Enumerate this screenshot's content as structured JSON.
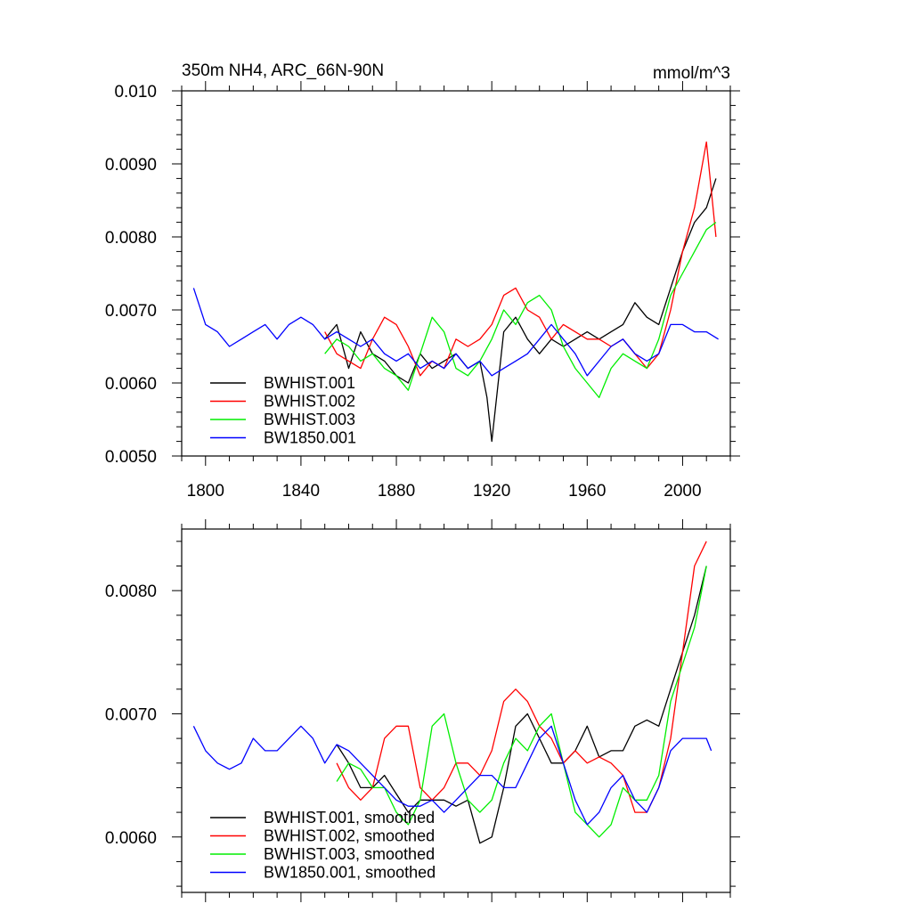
{
  "chart_data": [
    {
      "type": "line",
      "title": "350m NH4, ARC_66N-90N",
      "units": "mmol/m^3",
      "xlim": [
        1790,
        2020
      ],
      "ylim": [
        0.005,
        0.01
      ],
      "xticks": [
        1800,
        1840,
        1880,
        1920,
        1960,
        2000
      ],
      "xtick_labels": [
        "1800",
        "1840",
        "1880",
        "1920",
        "1960",
        "2000"
      ],
      "yticks": [
        0.005,
        0.006,
        0.007,
        0.008,
        0.009,
        0.01
      ],
      "ytick_labels": [
        "0.0050",
        "0.0060",
        "0.0070",
        "0.0080",
        "0.0090",
        "0.010"
      ],
      "legend_position": "bottom-left",
      "series": [
        {
          "name": "BWHIST.001",
          "color": "#000000",
          "x": [
            1850,
            1855,
            1860,
            1865,
            1870,
            1875,
            1880,
            1885,
            1890,
            1895,
            1900,
            1905,
            1910,
            1915,
            1918,
            1920,
            1925,
            1930,
            1935,
            1940,
            1945,
            1950,
            1955,
            1960,
            1965,
            1970,
            1975,
            1980,
            1985,
            1990,
            1995,
            2000,
            2005,
            2010,
            2014
          ],
          "y": [
            0.0066,
            0.0068,
            0.0062,
            0.0067,
            0.0064,
            0.0063,
            0.0061,
            0.006,
            0.0064,
            0.0062,
            0.0063,
            0.0064,
            0.0062,
            0.0063,
            0.0058,
            0.0052,
            0.0067,
            0.0069,
            0.0066,
            0.0064,
            0.0066,
            0.0065,
            0.0066,
            0.0067,
            0.0066,
            0.0067,
            0.0068,
            0.0071,
            0.0069,
            0.0068,
            0.0073,
            0.0078,
            0.0082,
            0.0084,
            0.0088
          ]
        },
        {
          "name": "BWHIST.002",
          "color": "#ff0000",
          "x": [
            1850,
            1855,
            1860,
            1865,
            1870,
            1875,
            1880,
            1885,
            1890,
            1895,
            1900,
            1905,
            1910,
            1915,
            1920,
            1925,
            1930,
            1935,
            1940,
            1945,
            1950,
            1955,
            1960,
            1965,
            1970,
            1975,
            1980,
            1985,
            1990,
            1995,
            2000,
            2005,
            2010,
            2014
          ],
          "y": [
            0.0067,
            0.0064,
            0.0063,
            0.0062,
            0.0066,
            0.0069,
            0.0068,
            0.0065,
            0.0061,
            0.0063,
            0.0062,
            0.0066,
            0.0065,
            0.0066,
            0.0068,
            0.0072,
            0.0073,
            0.007,
            0.0069,
            0.0066,
            0.0068,
            0.0067,
            0.0066,
            0.0066,
            0.0065,
            0.0066,
            0.0064,
            0.0062,
            0.0064,
            0.007,
            0.0078,
            0.0084,
            0.0093,
            0.008
          ]
        },
        {
          "name": "BWHIST.003",
          "color": "#00ee00",
          "x": [
            1850,
            1855,
            1860,
            1865,
            1870,
            1875,
            1880,
            1885,
            1890,
            1895,
            1900,
            1905,
            1910,
            1915,
            1920,
            1925,
            1930,
            1935,
            1940,
            1945,
            1950,
            1955,
            1960,
            1965,
            1970,
            1975,
            1980,
            1985,
            1990,
            1995,
            2000,
            2005,
            2010,
            2014
          ],
          "y": [
            0.0064,
            0.0066,
            0.0065,
            0.0063,
            0.0064,
            0.0062,
            0.0061,
            0.0059,
            0.0064,
            0.0069,
            0.0067,
            0.0062,
            0.0061,
            0.0063,
            0.0066,
            0.007,
            0.0068,
            0.0071,
            0.0072,
            0.007,
            0.0065,
            0.0062,
            0.006,
            0.0058,
            0.0062,
            0.0064,
            0.0063,
            0.0062,
            0.0066,
            0.0072,
            0.0075,
            0.0078,
            0.0081,
            0.0082
          ]
        },
        {
          "name": "BW1850.001",
          "color": "#0000ff",
          "x": [
            1795,
            1800,
            1805,
            1810,
            1815,
            1820,
            1825,
            1830,
            1835,
            1840,
            1845,
            1850,
            1855,
            1860,
            1865,
            1870,
            1875,
            1880,
            1885,
            1890,
            1895,
            1900,
            1905,
            1910,
            1915,
            1920,
            1925,
            1930,
            1935,
            1940,
            1945,
            1950,
            1955,
            1960,
            1965,
            1970,
            1975,
            1980,
            1985,
            1990,
            1995,
            2000,
            2005,
            2010,
            2015
          ],
          "y": [
            0.0073,
            0.0068,
            0.0067,
            0.0065,
            0.0066,
            0.0067,
            0.0068,
            0.0066,
            0.0068,
            0.0069,
            0.0068,
            0.0066,
            0.0067,
            0.0066,
            0.0065,
            0.0066,
            0.0064,
            0.0063,
            0.0064,
            0.0062,
            0.0063,
            0.0062,
            0.0064,
            0.0062,
            0.0063,
            0.0061,
            0.0062,
            0.0063,
            0.0064,
            0.0066,
            0.0068,
            0.0066,
            0.0064,
            0.0061,
            0.0063,
            0.0065,
            0.0066,
            0.0064,
            0.0063,
            0.0064,
            0.0068,
            0.0068,
            0.0067,
            0.0067,
            0.0066
          ]
        }
      ]
    },
    {
      "type": "line",
      "xlim": [
        1790,
        2020
      ],
      "ylim": [
        0.00555,
        0.0085
      ],
      "xticks": [
        1800,
        1840,
        1880,
        1920,
        1960,
        2000
      ],
      "yticks": [
        0.006,
        0.007,
        0.008
      ],
      "ytick_labels": [
        "0.0060",
        "0.0070",
        "0.0080"
      ],
      "legend_position": "bottom-left",
      "series": [
        {
          "name": "BWHIST.001, smoothed",
          "color": "#000000",
          "x": [
            1855,
            1860,
            1865,
            1870,
            1875,
            1880,
            1885,
            1890,
            1895,
            1900,
            1905,
            1910,
            1915,
            1920,
            1925,
            1930,
            1935,
            1940,
            1945,
            1950,
            1955,
            1960,
            1965,
            1970,
            1975,
            1980,
            1985,
            1990,
            1995,
            2000,
            2005,
            2010
          ],
          "y": [
            0.00675,
            0.0066,
            0.0064,
            0.0064,
            0.0065,
            0.00635,
            0.0062,
            0.0063,
            0.0063,
            0.0063,
            0.00625,
            0.0063,
            0.00595,
            0.006,
            0.0064,
            0.0069,
            0.007,
            0.0068,
            0.0066,
            0.0066,
            0.0067,
            0.0069,
            0.00665,
            0.0067,
            0.0067,
            0.0069,
            0.00695,
            0.0069,
            0.0072,
            0.0075,
            0.0078,
            0.0082
          ]
        },
        {
          "name": "BWHIST.002, smoothed",
          "color": "#ff0000",
          "x": [
            1855,
            1860,
            1865,
            1870,
            1875,
            1880,
            1885,
            1890,
            1895,
            1900,
            1905,
            1910,
            1915,
            1920,
            1925,
            1930,
            1935,
            1940,
            1945,
            1950,
            1955,
            1960,
            1965,
            1970,
            1975,
            1980,
            1985,
            1990,
            1995,
            2000,
            2005,
            2010
          ],
          "y": [
            0.0066,
            0.0064,
            0.0063,
            0.0064,
            0.0068,
            0.0069,
            0.0069,
            0.0064,
            0.0063,
            0.0064,
            0.0066,
            0.0066,
            0.0065,
            0.0067,
            0.0071,
            0.0072,
            0.0071,
            0.0069,
            0.0068,
            0.0066,
            0.0067,
            0.0066,
            0.00665,
            0.0066,
            0.0065,
            0.0062,
            0.0062,
            0.0064,
            0.0068,
            0.0075,
            0.0082,
            0.0084
          ]
        },
        {
          "name": "BWHIST.003, smoothed",
          "color": "#00ee00",
          "x": [
            1855,
            1860,
            1865,
            1870,
            1875,
            1880,
            1885,
            1890,
            1895,
            1900,
            1905,
            1910,
            1915,
            1920,
            1925,
            1930,
            1935,
            1940,
            1945,
            1950,
            1955,
            1960,
            1965,
            1970,
            1975,
            1980,
            1985,
            1990,
            1995,
            2000,
            2005,
            2010
          ],
          "y": [
            0.00645,
            0.0066,
            0.00655,
            0.0064,
            0.0064,
            0.0062,
            0.0061,
            0.0063,
            0.0069,
            0.007,
            0.0066,
            0.0063,
            0.0062,
            0.0063,
            0.0066,
            0.0068,
            0.0067,
            0.0069,
            0.007,
            0.0066,
            0.0062,
            0.0061,
            0.006,
            0.0061,
            0.0064,
            0.0063,
            0.0063,
            0.0065,
            0.0071,
            0.0074,
            0.0077,
            0.0082
          ]
        },
        {
          "name": "BW1850.001, smoothed",
          "color": "#0000ff",
          "x": [
            1795,
            1800,
            1805,
            1810,
            1815,
            1820,
            1825,
            1830,
            1835,
            1840,
            1845,
            1850,
            1855,
            1860,
            1865,
            1870,
            1875,
            1880,
            1885,
            1890,
            1895,
            1900,
            1905,
            1910,
            1915,
            1920,
            1925,
            1930,
            1935,
            1940,
            1945,
            1950,
            1955,
            1960,
            1965,
            1970,
            1975,
            1980,
            1985,
            1990,
            1995,
            2000,
            2005,
            2010,
            2012
          ],
          "y": [
            0.0069,
            0.0067,
            0.0066,
            0.00655,
            0.0066,
            0.0068,
            0.0067,
            0.0067,
            0.0068,
            0.0069,
            0.0068,
            0.0066,
            0.00675,
            0.0067,
            0.0066,
            0.0065,
            0.0064,
            0.0063,
            0.00625,
            0.00625,
            0.0063,
            0.0062,
            0.0063,
            0.0064,
            0.0065,
            0.0065,
            0.0064,
            0.0064,
            0.0066,
            0.0068,
            0.0069,
            0.0066,
            0.0063,
            0.0061,
            0.0062,
            0.0064,
            0.0065,
            0.0063,
            0.0062,
            0.0064,
            0.0067,
            0.0068,
            0.0068,
            0.0068,
            0.0067
          ]
        }
      ]
    }
  ]
}
